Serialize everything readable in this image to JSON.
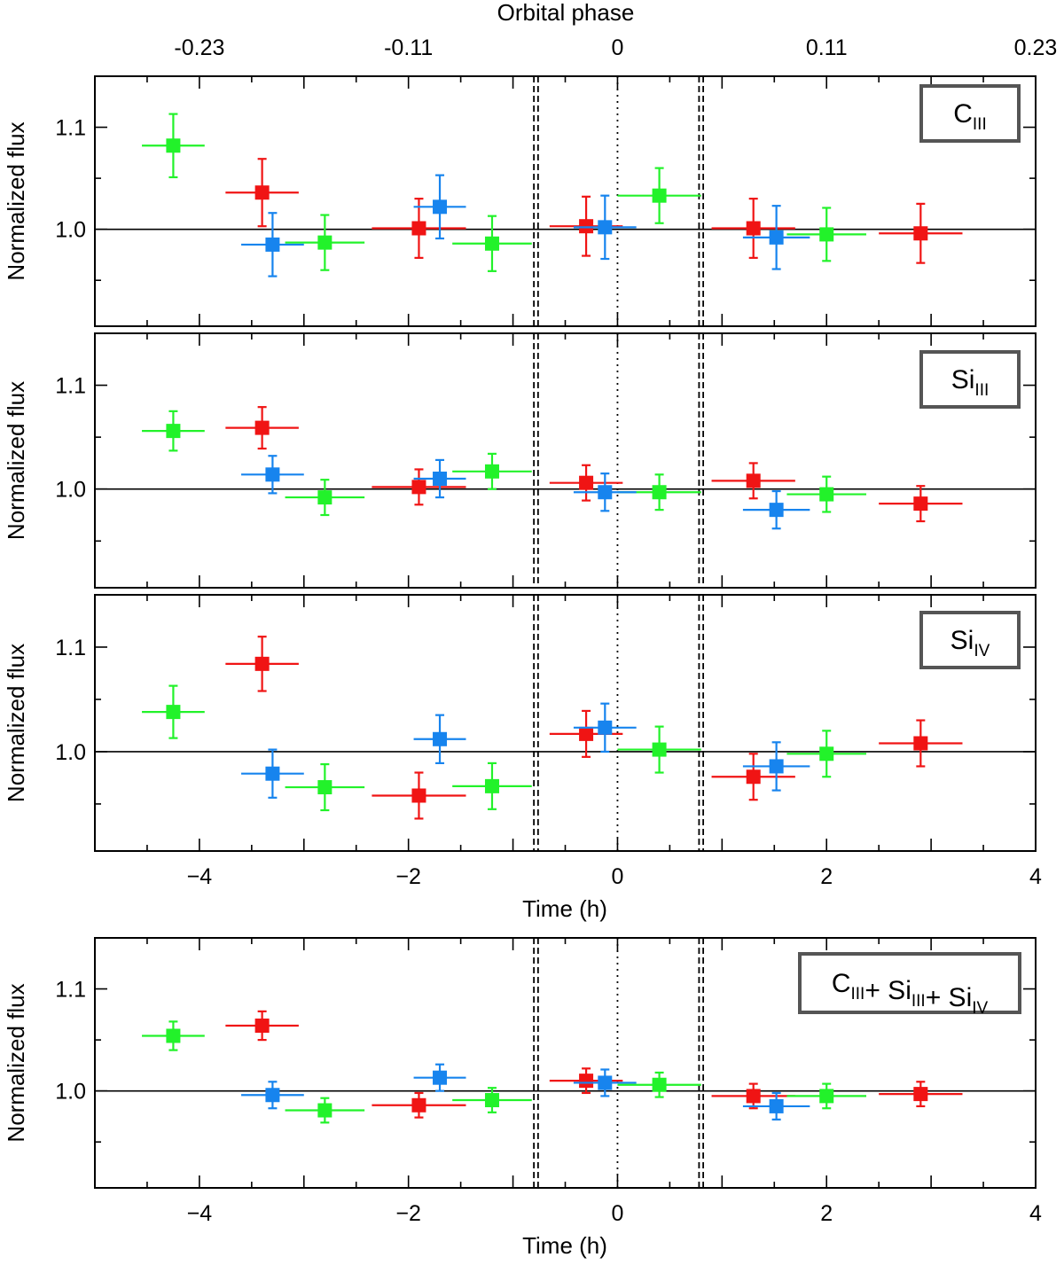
{
  "chart_data": {
    "type": "scatter",
    "top_axis": {
      "label": "Orbital phase",
      "tick_labels": [
        "-0.23",
        "-0.11",
        "0",
        "0.11",
        "0.23"
      ],
      "tick_positions_time_h": [
        -4,
        -2,
        0,
        2,
        4
      ]
    },
    "xlim": [
      -5,
      4
    ],
    "ylim": [
      0.905,
      1.15
    ],
    "ylabel": "Normalized flux",
    "xlabel": "Time (h)",
    "x_ticks": [
      -4,
      -2,
      0,
      2,
      4
    ],
    "x_tick_labels": [
      "−4",
      "−2",
      "0",
      "2",
      "4"
    ],
    "y_ticks": [
      1.0,
      1.1
    ],
    "y_tick_labels": [
      "1.0",
      "1.1"
    ],
    "reference_line_y": 1.0,
    "dotted_line_x": 0,
    "dashed_lines_x": [
      -0.8,
      -0.76,
      0.78,
      0.82
    ],
    "series_colors": {
      "red": "#f01414",
      "green": "#22f22a",
      "blue": "#1784ee"
    },
    "panels": [
      {
        "name": "c3",
        "label": {
          "base": "C",
          "sub": "III"
        },
        "show_xaxis_labels": false,
        "series": [
          {
            "name": "visit-red",
            "color": "red",
            "points": [
              {
                "x": -3.4,
                "xerr": 0.35,
                "y": 1.036,
                "yerr": 0.033
              },
              {
                "x": -1.9,
                "xerr": 0.45,
                "y": 1.001,
                "yerr": 0.029
              },
              {
                "x": -0.3,
                "xerr": 0.35,
                "y": 1.003,
                "yerr": 0.029
              },
              {
                "x": 1.3,
                "xerr": 0.4,
                "y": 1.001,
                "yerr": 0.029
              },
              {
                "x": 2.9,
                "xerr": 0.4,
                "y": 0.996,
                "yerr": 0.029
              }
            ]
          },
          {
            "name": "visit-green",
            "color": "green",
            "points": [
              {
                "x": -4.25,
                "xerr": 0.3,
                "y": 1.082,
                "yerr": 0.031
              },
              {
                "x": -2.8,
                "xerr": 0.38,
                "y": 0.987,
                "yerr": 0.027
              },
              {
                "x": -1.2,
                "xerr": 0.38,
                "y": 0.986,
                "yerr": 0.027
              },
              {
                "x": 0.4,
                "xerr": 0.4,
                "y": 1.033,
                "yerr": 0.027
              },
              {
                "x": 2.0,
                "xerr": 0.38,
                "y": 0.995,
                "yerr": 0.026
              }
            ]
          },
          {
            "name": "visit-blue",
            "color": "blue",
            "points": [
              {
                "x": -3.3,
                "xerr": 0.3,
                "y": 0.985,
                "yerr": 0.031
              },
              {
                "x": -1.7,
                "xerr": 0.25,
                "y": 1.022,
                "yerr": 0.031
              },
              {
                "x": -0.12,
                "xerr": 0.3,
                "y": 1.002,
                "yerr": 0.031
              },
              {
                "x": 1.52,
                "xerr": 0.32,
                "y": 0.992,
                "yerr": 0.031
              }
            ]
          }
        ]
      },
      {
        "name": "si3",
        "label": {
          "base": "Si",
          "sub": "III"
        },
        "show_xaxis_labels": false,
        "series": [
          {
            "name": "visit-red",
            "color": "red",
            "points": [
              {
                "x": -3.4,
                "xerr": 0.35,
                "y": 1.059,
                "yerr": 0.02
              },
              {
                "x": -1.9,
                "xerr": 0.45,
                "y": 1.002,
                "yerr": 0.017
              },
              {
                "x": -0.3,
                "xerr": 0.35,
                "y": 1.006,
                "yerr": 0.017
              },
              {
                "x": 1.3,
                "xerr": 0.4,
                "y": 1.008,
                "yerr": 0.017
              },
              {
                "x": 2.9,
                "xerr": 0.4,
                "y": 0.986,
                "yerr": 0.017
              }
            ]
          },
          {
            "name": "visit-green",
            "color": "green",
            "points": [
              {
                "x": -4.25,
                "xerr": 0.3,
                "y": 1.056,
                "yerr": 0.019
              },
              {
                "x": -2.8,
                "xerr": 0.38,
                "y": 0.992,
                "yerr": 0.017
              },
              {
                "x": -1.2,
                "xerr": 0.38,
                "y": 1.017,
                "yerr": 0.017
              },
              {
                "x": 0.4,
                "xerr": 0.4,
                "y": 0.997,
                "yerr": 0.017
              },
              {
                "x": 2.0,
                "xerr": 0.38,
                "y": 0.995,
                "yerr": 0.017
              }
            ]
          },
          {
            "name": "visit-blue",
            "color": "blue",
            "points": [
              {
                "x": -3.3,
                "xerr": 0.3,
                "y": 1.014,
                "yerr": 0.018
              },
              {
                "x": -1.7,
                "xerr": 0.25,
                "y": 1.01,
                "yerr": 0.018
              },
              {
                "x": -0.12,
                "xerr": 0.3,
                "y": 0.997,
                "yerr": 0.018
              },
              {
                "x": 1.52,
                "xerr": 0.32,
                "y": 0.98,
                "yerr": 0.018
              }
            ]
          }
        ]
      },
      {
        "name": "si4",
        "label": {
          "base": "Si",
          "sub": "IV"
        },
        "show_xaxis_labels": true,
        "series": [
          {
            "name": "visit-red",
            "color": "red",
            "points": [
              {
                "x": -3.4,
                "xerr": 0.35,
                "y": 1.084,
                "yerr": 0.026
              },
              {
                "x": -1.9,
                "xerr": 0.45,
                "y": 0.958,
                "yerr": 0.022
              },
              {
                "x": -0.3,
                "xerr": 0.35,
                "y": 1.017,
                "yerr": 0.022
              },
              {
                "x": 1.3,
                "xerr": 0.4,
                "y": 0.976,
                "yerr": 0.022
              },
              {
                "x": 2.9,
                "xerr": 0.4,
                "y": 1.008,
                "yerr": 0.022
              }
            ]
          },
          {
            "name": "visit-green",
            "color": "green",
            "points": [
              {
                "x": -4.25,
                "xerr": 0.3,
                "y": 1.038,
                "yerr": 0.025
              },
              {
                "x": -2.8,
                "xerr": 0.38,
                "y": 0.966,
                "yerr": 0.022
              },
              {
                "x": -1.2,
                "xerr": 0.38,
                "y": 0.967,
                "yerr": 0.022
              },
              {
                "x": 0.4,
                "xerr": 0.4,
                "y": 1.002,
                "yerr": 0.022
              },
              {
                "x": 2.0,
                "xerr": 0.38,
                "y": 0.998,
                "yerr": 0.022
              }
            ]
          },
          {
            "name": "visit-blue",
            "color": "blue",
            "points": [
              {
                "x": -3.3,
                "xerr": 0.3,
                "y": 0.979,
                "yerr": 0.023
              },
              {
                "x": -1.7,
                "xerr": 0.25,
                "y": 1.012,
                "yerr": 0.023
              },
              {
                "x": -0.12,
                "xerr": 0.3,
                "y": 1.023,
                "yerr": 0.023
              },
              {
                "x": 1.52,
                "xerr": 0.32,
                "y": 0.986,
                "yerr": 0.023
              }
            ]
          }
        ]
      },
      {
        "name": "combined",
        "label": {
          "parts": [
            {
              "base": "C",
              "sub": "III"
            },
            {
              "base": "+ Si",
              "sub": "III"
            },
            {
              "base": "+ Si",
              "sub": "IV"
            }
          ]
        },
        "show_xaxis_labels": true,
        "series": [
          {
            "name": "visit-red",
            "color": "red",
            "points": [
              {
                "x": -3.4,
                "xerr": 0.35,
                "y": 1.064,
                "yerr": 0.014
              },
              {
                "x": -1.9,
                "xerr": 0.45,
                "y": 0.986,
                "yerr": 0.012
              },
              {
                "x": -0.3,
                "xerr": 0.35,
                "y": 1.01,
                "yerr": 0.012
              },
              {
                "x": 1.3,
                "xerr": 0.4,
                "y": 0.995,
                "yerr": 0.012
              },
              {
                "x": 2.9,
                "xerr": 0.4,
                "y": 0.997,
                "yerr": 0.012
              }
            ]
          },
          {
            "name": "visit-green",
            "color": "green",
            "points": [
              {
                "x": -4.25,
                "xerr": 0.3,
                "y": 1.054,
                "yerr": 0.014
              },
              {
                "x": -2.8,
                "xerr": 0.38,
                "y": 0.981,
                "yerr": 0.012
              },
              {
                "x": -1.2,
                "xerr": 0.38,
                "y": 0.991,
                "yerr": 0.012
              },
              {
                "x": 0.4,
                "xerr": 0.4,
                "y": 1.006,
                "yerr": 0.012
              },
              {
                "x": 2.0,
                "xerr": 0.38,
                "y": 0.995,
                "yerr": 0.012
              }
            ]
          },
          {
            "name": "visit-blue",
            "color": "blue",
            "points": [
              {
                "x": -3.3,
                "xerr": 0.3,
                "y": 0.996,
                "yerr": 0.013
              },
              {
                "x": -1.7,
                "xerr": 0.25,
                "y": 1.013,
                "yerr": 0.013
              },
              {
                "x": -0.12,
                "xerr": 0.3,
                "y": 1.008,
                "yerr": 0.013
              },
              {
                "x": 1.52,
                "xerr": 0.32,
                "y": 0.985,
                "yerr": 0.013
              }
            ]
          }
        ]
      }
    ]
  }
}
